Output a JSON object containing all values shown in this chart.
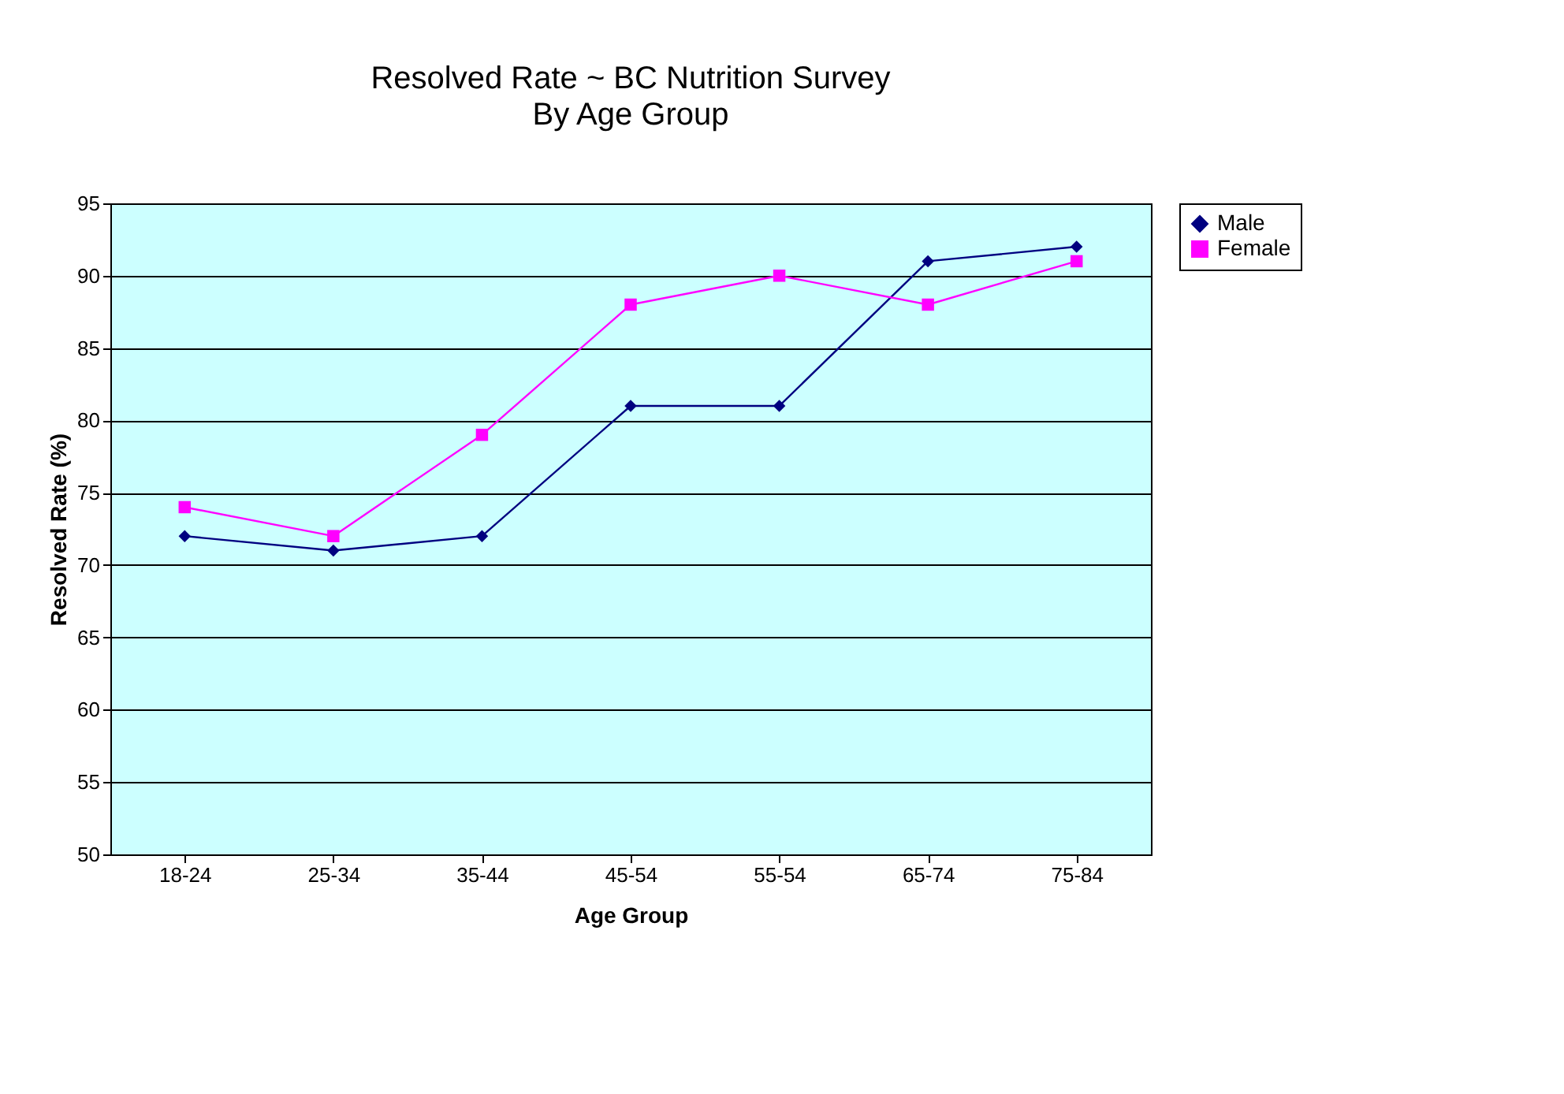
{
  "chart_data": {
    "type": "line",
    "title": "Resolved Rate ~ BC Nutrition Survey",
    "subtitle": "By Age Group",
    "xlabel": "Age Group",
    "ylabel": "Resolved Rate (%)",
    "categories": [
      "18-24",
      "25-34",
      "35-44",
      "45-54",
      "55-54",
      "65-74",
      "75-84"
    ],
    "series": [
      {
        "name": "Male",
        "color": "#000080",
        "marker": "diamond",
        "values": [
          72,
          71,
          72,
          81,
          81,
          91,
          92
        ]
      },
      {
        "name": "Female",
        "color": "#ff00ff",
        "marker": "square",
        "values": [
          74,
          72,
          79,
          88,
          90,
          88,
          91
        ]
      }
    ],
    "ylim": [
      50,
      95
    ],
    "yticks": [
      50,
      55,
      60,
      65,
      70,
      75,
      80,
      85,
      90,
      95
    ],
    "grid": "y",
    "legend": "right"
  }
}
